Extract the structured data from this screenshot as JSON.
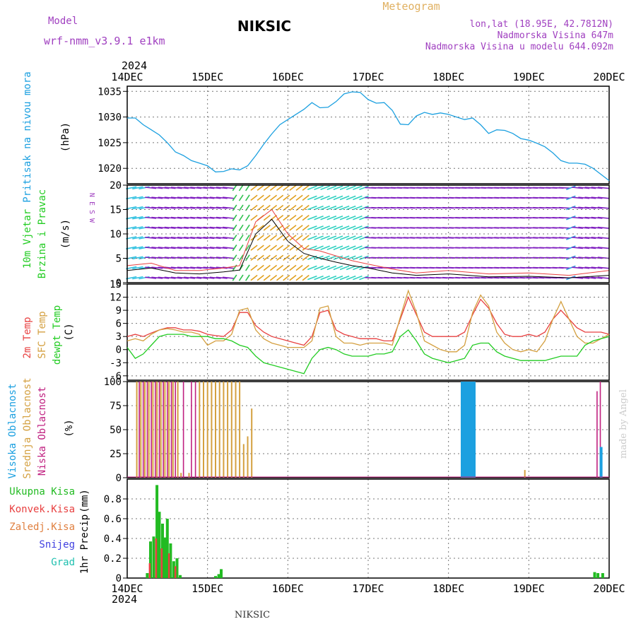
{
  "header": {
    "model_label": "Model",
    "model_name": "wrf-nmm_v3.9.1 e1km",
    "title": "NIKSIC",
    "meteogram": "Meteogram",
    "lonlat": "lon,lat (18.95E, 42.7812N)",
    "altitude": "Nadmorska Visina 647m",
    "model_altitude": "Nadmorska Visina u modelu 644.092m",
    "footer_title": "NIKSIC",
    "credit": "made by Angel"
  },
  "colors": {
    "pressure": "#1ca0e0",
    "temp2m": "#e84040",
    "sfc": "#d4a040",
    "dewpt": "#22cc22",
    "high_cloud": "#1ca0e0",
    "mid_cloud": "#d4a040",
    "low_cloud": "#c02080",
    "precip_total": "#22bb22",
    "precip_conv": "#e84040",
    "label_purple": "#a040c0",
    "label_orange": "#e0a040",
    "label_blue": "#4040e0",
    "label_teal": "#20c0b0"
  },
  "chart_data": [
    {
      "type": "line",
      "panel": "pressure",
      "ylabel": [
        "Pritisak na nivou mora",
        "(hPa)"
      ],
      "ylim": [
        1017,
        1036
      ],
      "yticks": [
        "1020",
        "1025",
        "1030",
        "1035"
      ],
      "xticks_top_year": "2024",
      "xticks": [
        "14DEC",
        "15DEC",
        "16DEC",
        "17DEC",
        "18DEC",
        "19DEC",
        "20DEC"
      ],
      "x": [
        0,
        0.1,
        0.2,
        0.3,
        0.4,
        0.5,
        0.6,
        0.7,
        0.8,
        0.9,
        1.0,
        1.1,
        1.2,
        1.3,
        1.4,
        1.5,
        1.6,
        1.7,
        1.8,
        1.9,
        2.0,
        2.1,
        2.2,
        2.3,
        2.4,
        2.5,
        2.6,
        2.7,
        2.8,
        2.9,
        3.0,
        3.1,
        3.2,
        3.3,
        3.4,
        3.5,
        3.6,
        3.7,
        3.8,
        3.9,
        4.0,
        4.1,
        4.2,
        4.3,
        4.4,
        4.5,
        4.6,
        4.7,
        4.8,
        4.9,
        5.0,
        5.1,
        5.2,
        5.3,
        5.4,
        5.5,
        5.6,
        5.7,
        5.8,
        5.9,
        6.0
      ],
      "y": [
        1029.8,
        1029.8,
        1028.5,
        1027.5,
        1026.5,
        1025.0,
        1023.2,
        1022.5,
        1021.5,
        1021.0,
        1020.5,
        1019.3,
        1019.4,
        1019.9,
        1019.7,
        1020.5,
        1022.5,
        1024.7,
        1026.7,
        1028.5,
        1029.5,
        1030.5,
        1031.5,
        1032.8,
        1031.8,
        1031.9,
        1033.0,
        1034.5,
        1034.9,
        1034.8,
        1033.4,
        1032.7,
        1032.8,
        1031.3,
        1028.6,
        1028.5,
        1030.2,
        1030.9,
        1030.5,
        1030.8,
        1030.5,
        1030.0,
        1029.5,
        1029.8,
        1028.5,
        1026.8,
        1027.5,
        1027.4,
        1026.8,
        1025.8,
        1025.5,
        1024.9,
        1024.2,
        1023.0,
        1021.5,
        1021.0,
        1021.0,
        1020.8,
        1020.0,
        1018.8,
        1017.6
      ]
    },
    {
      "type": "barbs",
      "panel": "wind",
      "ylabel": [
        "10m Vjetar",
        "Brzina i Pravac",
        "(m/s)"
      ],
      "compass": "N  E  S  W",
      "ylim": [
        0,
        20
      ],
      "yticks": [
        "0",
        "5",
        "10",
        "15",
        "20"
      ],
      "speed_x": [
        0,
        0.3,
        0.6,
        0.9,
        1.2,
        1.4,
        1.6,
        1.8,
        2.0,
        2.2,
        2.4,
        2.6,
        2.8,
        3.0,
        3.3,
        3.6,
        4.0,
        4.5,
        5.0,
        5.5,
        6.0
      ],
      "speed_y": [
        2.5,
        3.0,
        2.0,
        1.8,
        2.2,
        2.6,
        10.0,
        13.0,
        8.5,
        6.0,
        5.0,
        4.2,
        3.5,
        3.0,
        2.0,
        1.5,
        1.8,
        1.2,
        1.3,
        1.0,
        1.5
      ],
      "gust_y": [
        3.5,
        4.0,
        2.5,
        2.5,
        3.0,
        3.5,
        12.5,
        15.0,
        10.0,
        7.0,
        6.5,
        5.5,
        4.5,
        3.8,
        2.8,
        2.0,
        2.5,
        1.8,
        2.0,
        1.5,
        2.5
      ]
    },
    {
      "type": "line",
      "panel": "temperature",
      "ylabel": [
        "2m Temp",
        "SFC Temp",
        "dewpt Temp",
        "(C)"
      ],
      "ylim": [
        -7,
        15
      ],
      "yticks": [
        "-6",
        "-3",
        "0",
        "3",
        "6",
        "9",
        "12",
        "15"
      ],
      "x": [
        0,
        0.1,
        0.2,
        0.3,
        0.4,
        0.5,
        0.6,
        0.7,
        0.8,
        0.9,
        1.0,
        1.1,
        1.2,
        1.3,
        1.4,
        1.5,
        1.6,
        1.7,
        1.8,
        1.9,
        2.0,
        2.1,
        2.2,
        2.3,
        2.4,
        2.5,
        2.6,
        2.7,
        2.8,
        2.9,
        3.0,
        3.1,
        3.2,
        3.3,
        3.4,
        3.5,
        3.6,
        3.7,
        3.8,
        3.9,
        4.0,
        4.1,
        4.2,
        4.3,
        4.4,
        4.5,
        4.6,
        4.7,
        4.8,
        4.9,
        5.0,
        5.1,
        5.2,
        5.3,
        5.4,
        5.5,
        5.6,
        5.7,
        5.8,
        5.9,
        6.0
      ],
      "series": [
        {
          "name": "2m Temp",
          "y": [
            3.0,
            3.5,
            3.0,
            3.8,
            4.5,
            5.0,
            5.0,
            4.5,
            4.5,
            4.2,
            3.5,
            3.2,
            3.0,
            4.5,
            8.5,
            8.5,
            5.5,
            4.0,
            3.0,
            2.5,
            2.0,
            1.5,
            1.0,
            3.0,
            8.5,
            9.0,
            4.5,
            3.5,
            3.0,
            2.5,
            2.5,
            2.5,
            2.0,
            2.0,
            7.0,
            12.0,
            8.0,
            4.0,
            3.0,
            3.0,
            3.0,
            3.0,
            4.0,
            8.0,
            11.5,
            9.5,
            6.0,
            3.5,
            3.0,
            3.0,
            3.5,
            3.0,
            4.0,
            7.0,
            9.0,
            7.0,
            5.0,
            4.0,
            4.0,
            4.0,
            3.5
          ]
        },
        {
          "name": "SFC Temp",
          "y": [
            2.0,
            2.5,
            2.0,
            3.5,
            4.5,
            4.8,
            4.5,
            4.0,
            4.0,
            3.5,
            1.0,
            2.0,
            2.0,
            3.5,
            9.0,
            9.5,
            4.5,
            2.5,
            1.5,
            1.0,
            0.5,
            0.5,
            0.5,
            2.0,
            9.5,
            10.0,
            3.0,
            1.5,
            1.5,
            1.0,
            1.5,
            1.5,
            1.5,
            1.0,
            7.5,
            13.5,
            8.5,
            2.0,
            1.0,
            0.0,
            -0.5,
            -0.5,
            1.0,
            8.5,
            12.5,
            10.0,
            4.0,
            1.5,
            0.0,
            -0.5,
            0.0,
            -0.5,
            2.0,
            7.0,
            11.0,
            7.0,
            3.0,
            1.5,
            1.5,
            2.5,
            3.5
          ]
        },
        {
          "name": "dewpt Temp",
          "y": [
            0.5,
            -2.0,
            -1.0,
            1.0,
            3.0,
            3.5,
            3.5,
            3.5,
            3.0,
            3.0,
            3.0,
            2.5,
            2.5,
            2.0,
            1.0,
            0.5,
            -1.5,
            -3.0,
            -3.5,
            -4.0,
            -4.5,
            -5.0,
            -5.5,
            -2.0,
            0.0,
            0.5,
            0.0,
            -1.0,
            -1.5,
            -1.5,
            -1.5,
            -1.0,
            -1.0,
            -0.5,
            3.0,
            4.5,
            2.0,
            -1.0,
            -2.0,
            -2.5,
            -3.0,
            -2.5,
            -2.0,
            1.0,
            1.5,
            1.5,
            -0.5,
            -1.5,
            -2.0,
            -2.5,
            -2.5,
            -2.5,
            -2.5,
            -2.0,
            -1.5,
            -1.5,
            -1.5,
            1.0,
            2.0,
            2.5,
            3.0
          ]
        }
      ]
    },
    {
      "type": "bar",
      "panel": "cloud",
      "ylabel": [
        "Visoka Oblacnost",
        "Srednja Oblacnost",
        "Niska Oblacnost",
        "(%)"
      ],
      "ylim": [
        0,
        100
      ],
      "yticks": [
        "0",
        "25",
        "50",
        "75",
        "100"
      ],
      "series": [
        {
          "name": "Srednja Oblacnost",
          "x": [
            0.12,
            0.17,
            0.22,
            0.27,
            0.32,
            0.37,
            0.42,
            0.47,
            0.52,
            0.57,
            0.63,
            0.67,
            0.77,
            0.9,
            0.95,
            1.0,
            1.05,
            1.1,
            1.15,
            1.2,
            1.25,
            1.3,
            1.35,
            1.4,
            1.45,
            1.5,
            1.55,
            4.95
          ],
          "values": [
            100,
            100,
            100,
            100,
            100,
            100,
            100,
            100,
            100,
            100,
            100,
            5,
            5,
            100,
            100,
            100,
            100,
            100,
            100,
            100,
            100,
            100,
            100,
            100,
            35,
            43,
            72,
            8
          ]
        },
        {
          "name": "Niska Oblacnost",
          "x": [
            0.15,
            0.2,
            0.25,
            0.3,
            0.35,
            0.4,
            0.45,
            0.5,
            0.55,
            0.6,
            0.7,
            0.8,
            0.85,
            5.85,
            5.89
          ],
          "values": [
            100,
            100,
            100,
            100,
            100,
            100,
            100,
            100,
            100,
            100,
            100,
            100,
            100,
            90,
            100
          ]
        },
        {
          "name": "Visoka Oblacnost",
          "x": [
            4.17,
            4.2,
            4.23,
            4.26,
            4.29,
            4.32,
            5.9
          ],
          "values": [
            100,
            100,
            100,
            100,
            100,
            100,
            32
          ]
        }
      ]
    },
    {
      "type": "bar",
      "panel": "precip",
      "ylabel": [
        "1hr Precip",
        "(mm)"
      ],
      "ylim": [
        0,
        1.0
      ],
      "yticks": [
        "0",
        "0.2",
        "0.4",
        "0.6",
        "0.8"
      ],
      "legend": [
        "Ukupna Kisa",
        "Konvek.Kisa",
        "Zaledj.Kisa",
        "Snijeg",
        "Grad"
      ],
      "xticks_bottom_year": "2024",
      "series": [
        {
          "name": "Ukupna Kisa",
          "x": [
            0.25,
            0.29,
            0.33,
            0.37,
            0.4,
            0.44,
            0.47,
            0.5,
            0.54,
            0.58,
            0.62,
            0.66,
            1.1,
            1.14,
            1.17,
            5.82,
            5.86,
            5.92
          ],
          "values": [
            0.05,
            0.37,
            0.42,
            0.94,
            0.67,
            0.55,
            0.41,
            0.6,
            0.35,
            0.17,
            0.2,
            0.03,
            0.02,
            0.04,
            0.09,
            0.06,
            0.05,
            0.05
          ]
        },
        {
          "name": "Konvek.Kisa",
          "x": [
            0.28,
            0.36,
            0.43,
            0.52,
            0.6
          ],
          "values": [
            0.15,
            0.4,
            0.3,
            0.25,
            0.12
          ]
        }
      ]
    }
  ]
}
